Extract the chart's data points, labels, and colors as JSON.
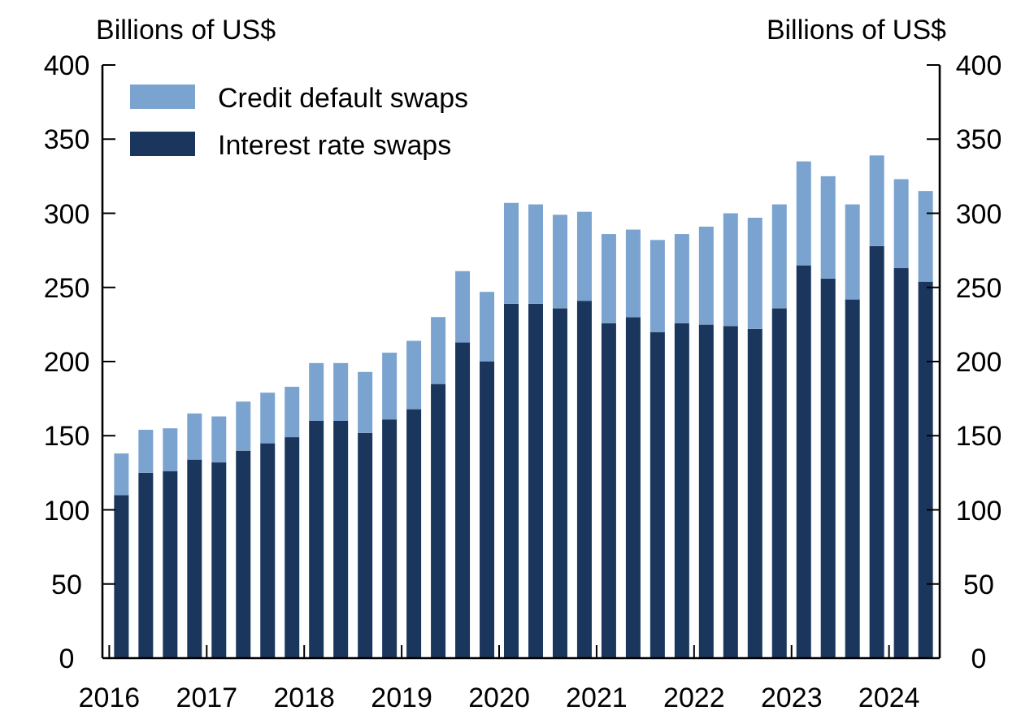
{
  "chart_data": {
    "type": "bar",
    "stacked": true,
    "ylabel": "Billions of US$",
    "y2label": "Billions of US$",
    "x": [
      2016.125,
      2016.375,
      2016.625,
      2016.875,
      2017.125,
      2017.375,
      2017.625,
      2017.875,
      2018.125,
      2018.375,
      2018.625,
      2018.875,
      2019.125,
      2019.375,
      2019.625,
      2019.875,
      2020.125,
      2020.375,
      2020.625,
      2020.875,
      2021.125,
      2021.375,
      2021.625,
      2021.875,
      2022.125,
      2022.375,
      2022.625,
      2022.875,
      2023.125,
      2023.375,
      2023.625,
      2023.875,
      2024.125,
      2024.375
    ],
    "xlim": [
      2015.93,
      2024.52
    ],
    "xticks": [
      2016,
      2017,
      2018,
      2019,
      2020,
      2021,
      2022,
      2023,
      2024
    ],
    "ylim": [
      0,
      400
    ],
    "yticks": [
      0,
      50,
      100,
      150,
      200,
      250,
      300,
      350,
      400
    ],
    "y2lim": [
      0,
      400
    ],
    "y2ticks": [
      0,
      50,
      100,
      150,
      200,
      250,
      300,
      350,
      400
    ],
    "legend": "top left",
    "grid": false,
    "series": [
      {
        "name": "Interest rate swaps",
        "color": "#1b365d",
        "values": [
          110,
          125,
          126,
          134,
          132,
          140,
          145,
          149,
          160,
          160,
          152,
          161,
          168,
          185,
          213,
          200,
          239,
          239,
          236,
          241,
          226,
          230,
          220,
          226,
          225,
          224,
          222,
          236,
          265,
          256,
          242,
          278,
          263,
          254
        ]
      },
      {
        "name": "Credit default swaps",
        "color": "#7ba3d0",
        "values": [
          28,
          29,
          29,
          31,
          31,
          33,
          34,
          34,
          39,
          39,
          41,
          45,
          46,
          45,
          48,
          47,
          68,
          67,
          63,
          60,
          60,
          59,
          62,
          60,
          66,
          76,
          75,
          70,
          70,
          69,
          64,
          61,
          60,
          61
        ]
      }
    ]
  }
}
